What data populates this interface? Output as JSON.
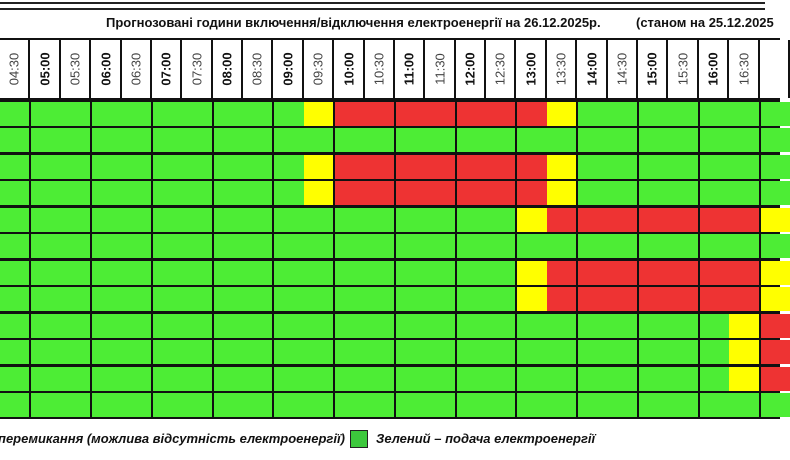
{
  "title": {
    "main": "Прогнозовані години включення/відключення електроенергії на 26.12.2025р.",
    "as_of": "(станом на 25.12.2025"
  },
  "colors": {
    "green": "#4ded35",
    "yellow": "#ffff00",
    "red": "#ee3333",
    "legend_green": "#3cc83c"
  },
  "columns": [
    {
      "label": "04:30",
      "full": false
    },
    {
      "label": "05:00",
      "full": true
    },
    {
      "label": "05:30",
      "full": false
    },
    {
      "label": "06:00",
      "full": true
    },
    {
      "label": "06:30",
      "full": false
    },
    {
      "label": "07:00",
      "full": true
    },
    {
      "label": "07:30",
      "full": false
    },
    {
      "label": "08:00",
      "full": true
    },
    {
      "label": "08:30",
      "full": false
    },
    {
      "label": "09:00",
      "full": true
    },
    {
      "label": "09:30",
      "full": false
    },
    {
      "label": "10:00",
      "full": true
    },
    {
      "label": "10:30",
      "full": false
    },
    {
      "label": "11:00",
      "full": true
    },
    {
      "label": "11:30",
      "full": false
    },
    {
      "label": "12:00",
      "full": true
    },
    {
      "label": "12:30",
      "full": false
    },
    {
      "label": "13:00",
      "full": true
    },
    {
      "label": "13:30",
      "full": false
    },
    {
      "label": "14:00",
      "full": true
    },
    {
      "label": "14:30",
      "full": false
    },
    {
      "label": "15:00",
      "full": true
    },
    {
      "label": "15:30",
      "full": false
    },
    {
      "label": "16:00",
      "full": true
    },
    {
      "label": "16:30",
      "full": false
    },
    {
      "label": "",
      "full": true
    }
  ],
  "schedule": {
    "legend_codes": {
      "G": "green",
      "Y": "yellow",
      "R": "red"
    },
    "groups": [
      {
        "rows": [
          "GGGGGGGGGGYRRRRRRRYGGGGGGG",
          "GGGGGGGGGGGGGGGGGGGGGGGGGG"
        ]
      },
      {
        "rows": [
          "GGGGGGGGGGYRRRRRRRYGGGGGGG",
          "GGGGGGGGGGYRRRRRRRYGGGGGGG"
        ]
      },
      {
        "rows": [
          "GGGGGGGGGGGGGGGGGYRRRRRRRY",
          "GGGGGGGGGGGGGGGGGGGGGGGGGG"
        ]
      },
      {
        "rows": [
          "GGGGGGGGGGGGGGGGGYRRRRRRRY",
          "GGGGGGGGGGGGGGGGGYRRRRRRRY"
        ]
      },
      {
        "rows": [
          "GGGGGGGGGGGGGGGGGGGGGGGGYR",
          "GGGGGGGGGGGGGGGGGGGGGGGGYR"
        ]
      },
      {
        "rows": [
          "GGGGGGGGGGGGGGGGGGGGGGGGYR",
          "GGGGGGGGGGGGGGGGGGGGGGGGGG"
        ]
      }
    ]
  },
  "legend": {
    "yellow_text": "перемикання (можлива відсутність електроенергії)",
    "green_text": "Зелений – подача електроенергії"
  }
}
